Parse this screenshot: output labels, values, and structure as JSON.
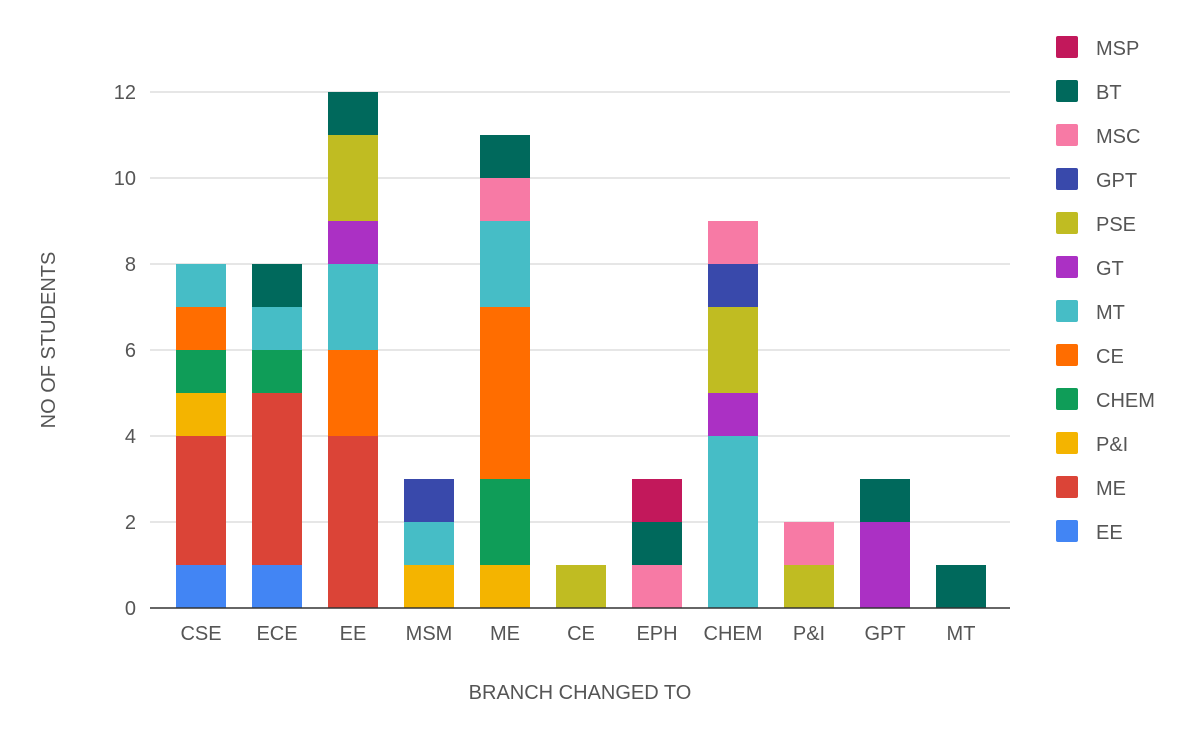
{
  "chart_data": {
    "type": "bar",
    "stacked": true,
    "title": "",
    "xlabel": "BRANCH CHANGED TO",
    "ylabel": "NO OF STUDENTS",
    "ylim": [
      0,
      12
    ],
    "yticks": [
      0,
      2,
      4,
      6,
      8,
      10,
      12
    ],
    "grid": true,
    "legend_position": "right",
    "categories": [
      "CSE",
      "ECE",
      "EE",
      "MSM",
      "ME",
      "CE",
      "EPH",
      "CHEM",
      "P&I",
      "GPT",
      "MT"
    ],
    "series": [
      {
        "name": "EE",
        "color": "#4285F4",
        "values": [
          1,
          1,
          0,
          0,
          0,
          0,
          0,
          0,
          0,
          0,
          0
        ]
      },
      {
        "name": "ME",
        "color": "#DB4437",
        "values": [
          3,
          4,
          4,
          0,
          0,
          0,
          0,
          0,
          0,
          0,
          0
        ]
      },
      {
        "name": "P&I",
        "color": "#F4B400",
        "values": [
          1,
          0,
          0,
          1,
          1,
          0,
          0,
          0,
          0,
          0,
          0
        ]
      },
      {
        "name": "CHEM",
        "color": "#0F9D58",
        "values": [
          1,
          1,
          0,
          0,
          2,
          0,
          0,
          0,
          0,
          0,
          0
        ]
      },
      {
        "name": "CE",
        "color": "#FF6D00",
        "values": [
          1,
          0,
          2,
          0,
          4,
          0,
          0,
          0,
          0,
          0,
          0
        ]
      },
      {
        "name": "MT",
        "color": "#46BDC6",
        "values": [
          1,
          1,
          2,
          1,
          2,
          0,
          0,
          4,
          0,
          0,
          0
        ]
      },
      {
        "name": "GT",
        "color": "#AB30C4",
        "values": [
          0,
          0,
          1,
          0,
          0,
          0,
          0,
          1,
          0,
          2,
          0
        ]
      },
      {
        "name": "PSE",
        "color": "#C0BC22",
        "values": [
          0,
          0,
          2,
          0,
          0,
          1,
          0,
          2,
          1,
          0,
          0
        ]
      },
      {
        "name": "GPT",
        "color": "#3949AB",
        "values": [
          0,
          0,
          0,
          1,
          0,
          0,
          0,
          1,
          0,
          0,
          0
        ]
      },
      {
        "name": "MSC",
        "color": "#F77AA5",
        "values": [
          0,
          0,
          0,
          0,
          1,
          0,
          1,
          1,
          1,
          0,
          0
        ]
      },
      {
        "name": "BT",
        "color": "#00695C",
        "values": [
          0,
          1,
          1,
          0,
          1,
          0,
          1,
          0,
          0,
          1,
          1
        ]
      },
      {
        "name": "MSP",
        "color": "#C2185B",
        "values": [
          0,
          0,
          0,
          0,
          0,
          0,
          1,
          0,
          0,
          0,
          0
        ]
      }
    ]
  }
}
